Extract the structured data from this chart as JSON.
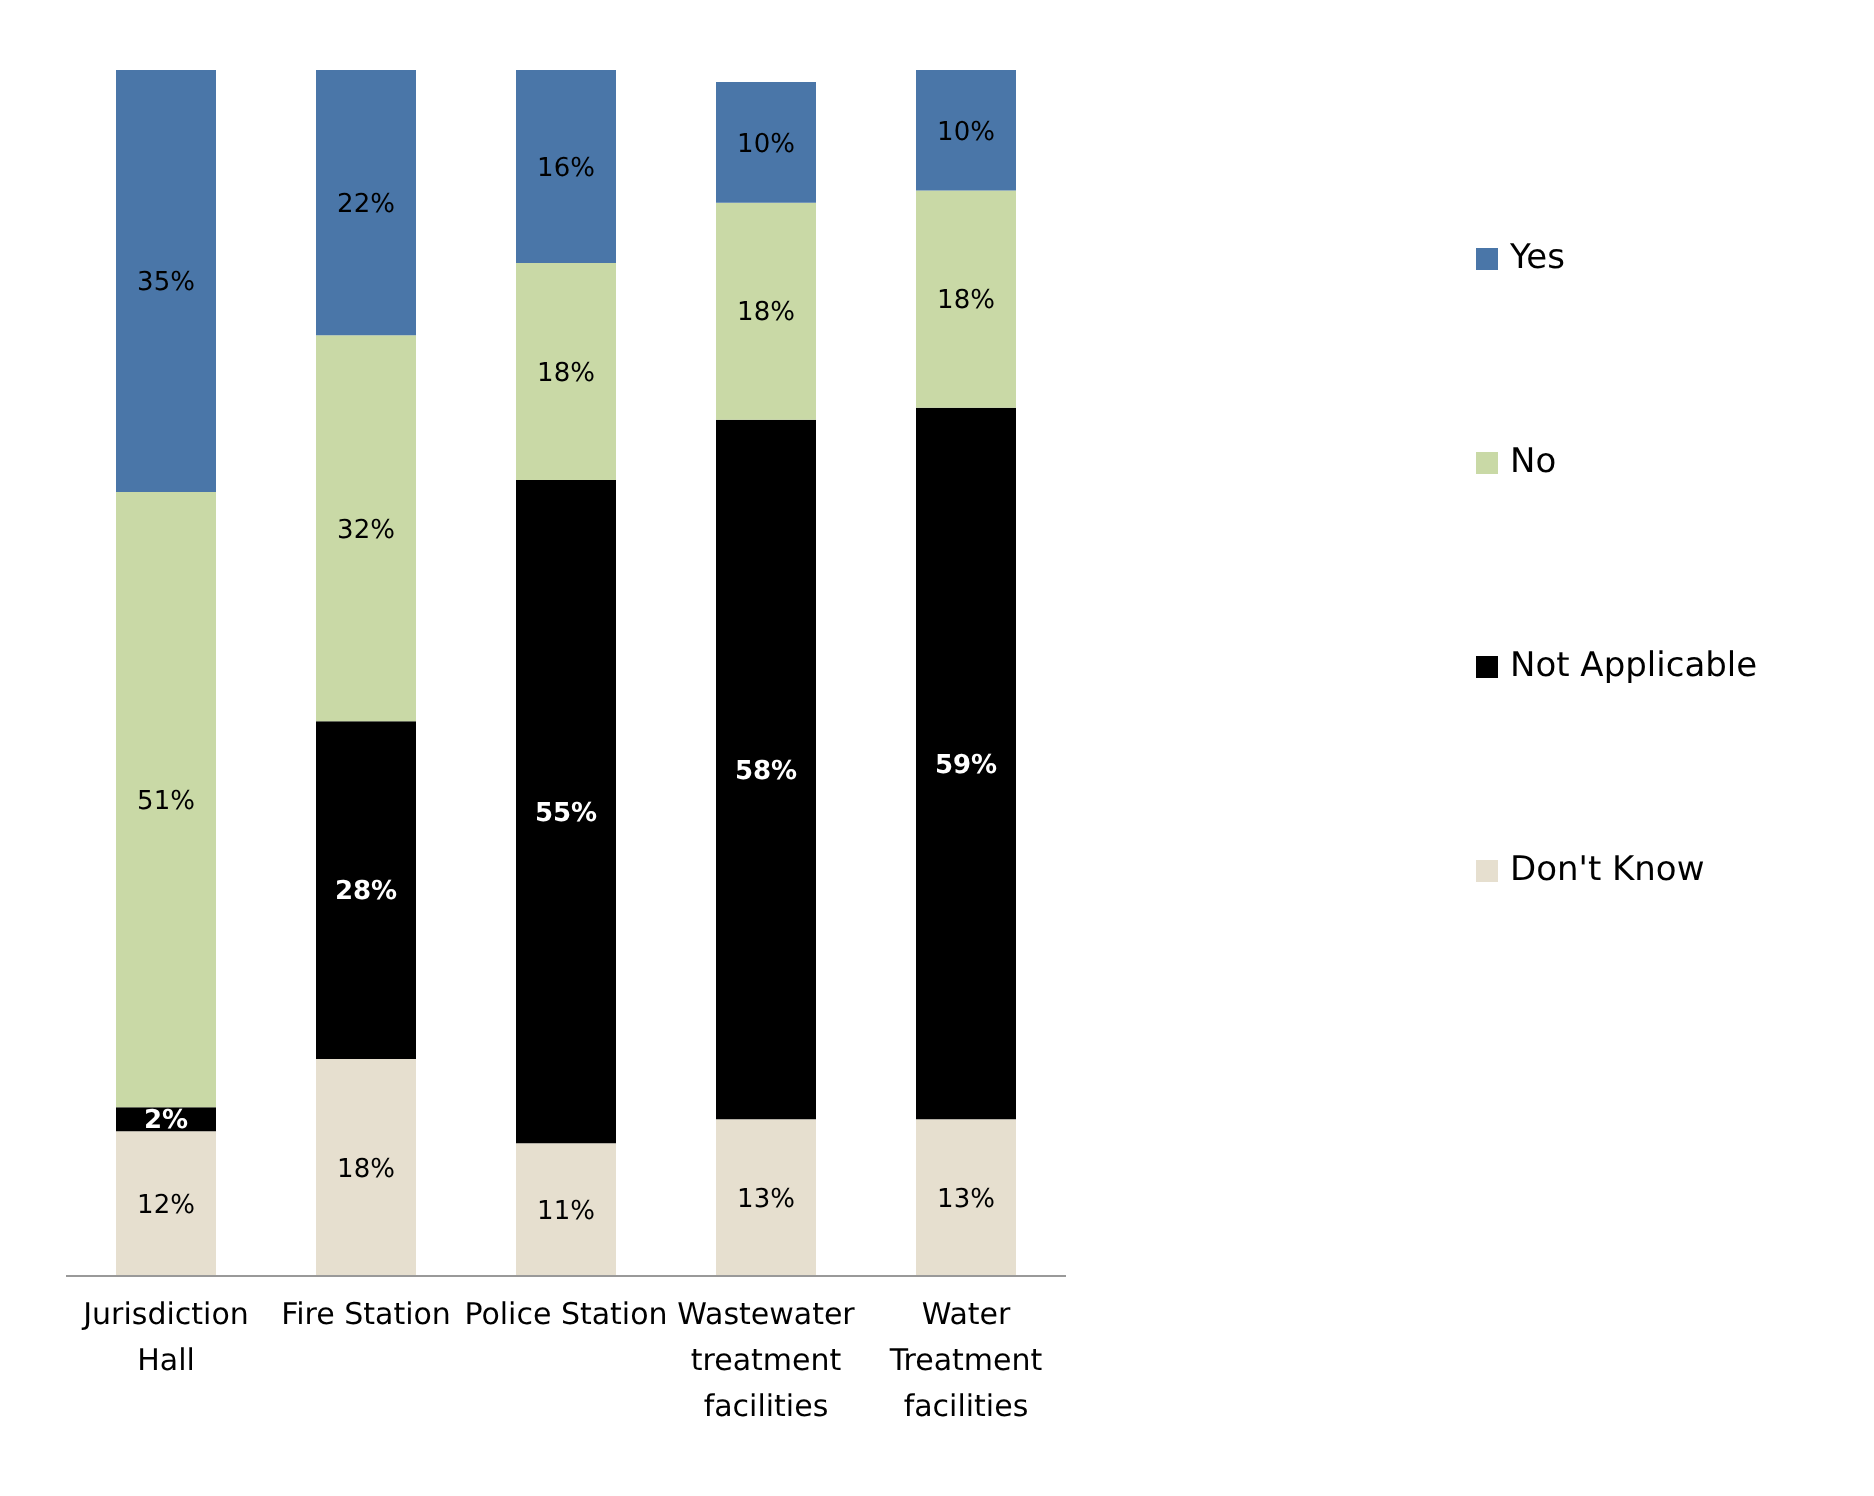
{
  "chart_data": {
    "type": "bar",
    "stacked": true,
    "legend": "right",
    "grid": false,
    "categories": [
      "Jurisdiction Hall",
      "Fire Station",
      "Police Station",
      "Wastewater treatment facilities",
      "Water Treatment facilities"
    ],
    "series": [
      {
        "name": "Don't Know",
        "color": "#e6dfcf",
        "values": [
          12,
          18,
          11,
          13,
          13
        ],
        "value_labels": [
          "12%",
          "18%",
          "11%",
          "13%",
          "13%"
        ]
      },
      {
        "name": "Not Applicable",
        "color": "#000000",
        "values": [
          2,
          28,
          55,
          58,
          59
        ],
        "value_labels": [
          "2%",
          "28%",
          "55%",
          "58%",
          "59%"
        ]
      },
      {
        "name": "No",
        "color": "#c9d9a6",
        "values": [
          51,
          32,
          18,
          18,
          18
        ],
        "value_labels": [
          "51%",
          "32%",
          "18%",
          "18%",
          "18%"
        ]
      },
      {
        "name": "Yes",
        "color": "#4a76a8",
        "values": [
          35,
          22,
          16,
          10,
          10
        ],
        "value_labels": [
          "35%",
          "22%",
          "16%",
          "10%",
          "10%"
        ]
      }
    ]
  }
}
